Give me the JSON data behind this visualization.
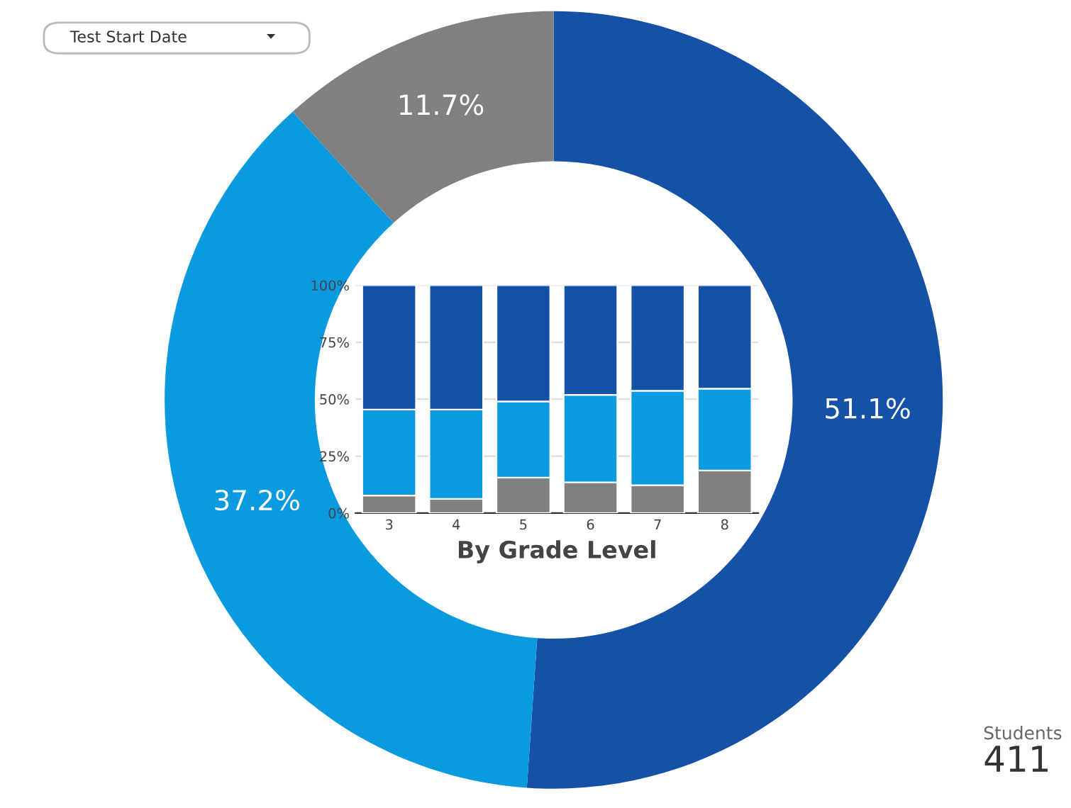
{
  "chart_data": [
    {
      "type": "donut",
      "categories": [
        null,
        null,
        null
      ],
      "values": [
        51.1,
        37.2,
        11.7
      ],
      "colors": [
        "#1551a6",
        "#0a9ae0",
        "#808080"
      ],
      "value_labels": [
        "51.1%",
        "37.2%",
        "11.7%"
      ],
      "annotations": [
        "Test Start Date"
      ]
    },
    {
      "type": "bar",
      "stacked": true,
      "categories": [
        "3",
        "4",
        "5",
        "6",
        "7",
        "8"
      ],
      "series": [
        {
          "color": "#808080",
          "values": [
            7.7,
            6.2,
            15.6,
            13.5,
            12.2,
            18.7
          ]
        },
        {
          "color": "#0a9ae0",
          "values": [
            37.7,
            39.2,
            33.4,
            38.4,
            41.5,
            35.9
          ]
        },
        {
          "color": "#1551a6",
          "values": [
            54.6,
            54.6,
            51.0,
            48.1,
            46.3,
            45.4
          ]
        }
      ],
      "ylim": [
        0,
        100
      ],
      "yticks": [
        {
          "value": 0,
          "label": "0%"
        },
        {
          "value": 25,
          "label": "25%"
        },
        {
          "value": 50,
          "label": "50%"
        },
        {
          "value": 75,
          "label": "75%"
        },
        {
          "value": 100,
          "label": "100%"
        }
      ],
      "grid": "y",
      "xlabel": "By Grade Level"
    },
    {
      "type": "other",
      "title": "Students",
      "annotations": [
        "411"
      ]
    }
  ]
}
